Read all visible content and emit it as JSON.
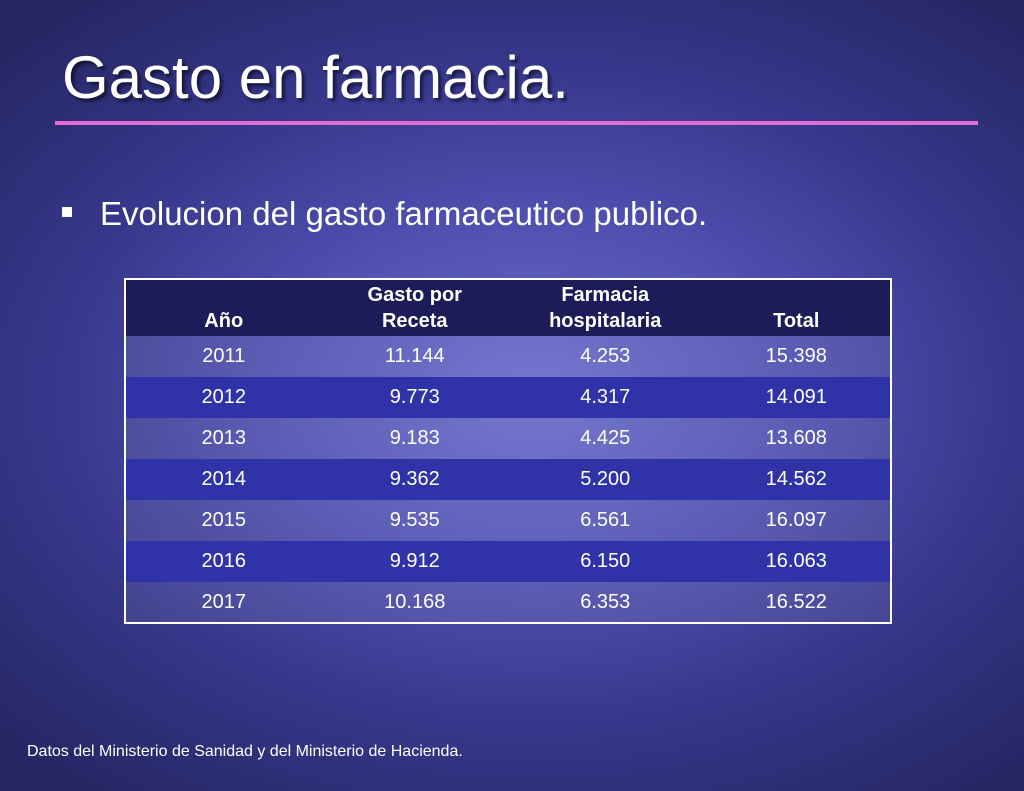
{
  "slide": {
    "title": "Gasto en farmacia.",
    "bullet": "Evolucion del gasto farmaceutico publico.",
    "footnote": "Datos del Ministerio de Sanidad y del Ministerio de Hacienda."
  },
  "colors": {
    "title_rule": "#e86ad6",
    "header_bg": "#1b1c58",
    "alt_row_bg": "#2f33a7"
  },
  "table": {
    "headers": [
      [
        "Año"
      ],
      [
        "Gasto por",
        "Receta"
      ],
      [
        "Farmacia",
        "hospitalaria"
      ],
      [
        "Total"
      ]
    ],
    "rows": [
      [
        "2011",
        "11.144",
        "4.253",
        "15.398"
      ],
      [
        "2012",
        "9.773",
        "4.317",
        "14.091"
      ],
      [
        "2013",
        "9.183",
        "4.425",
        "13.608"
      ],
      [
        "2014",
        "9.362",
        "5.200",
        "14.562"
      ],
      [
        "2015",
        "9.535",
        "6.561",
        "16.097"
      ],
      [
        "2016",
        "9.912",
        "6.150",
        "16.063"
      ],
      [
        "2017",
        "10.168",
        "6.353",
        "16.522"
      ]
    ]
  }
}
